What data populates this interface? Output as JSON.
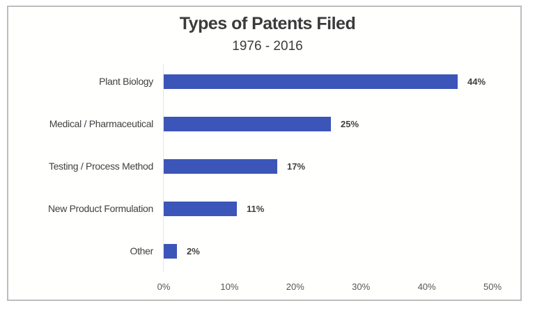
{
  "chart_data": {
    "type": "bar",
    "orientation": "horizontal",
    "title": "Types of Patents Filed",
    "subtitle": "1976 - 2016",
    "categories": [
      "Plant Biology",
      "Medical / Pharmaceutical",
      "Testing / Process Method",
      "New Product Formulation",
      "Other"
    ],
    "values": [
      44,
      25,
      17,
      11,
      2
    ],
    "value_labels": [
      "44%",
      "25%",
      "17%",
      "11%",
      "2%"
    ],
    "xlabel": "",
    "ylabel": "",
    "xlim": [
      0,
      50
    ],
    "x_ticks": [
      "0%",
      "10%",
      "20%",
      "30%",
      "40%",
      "50%"
    ],
    "grid": false,
    "legend": null,
    "bar_color": "#3c55b8"
  },
  "colors": {
    "bar": "#3c55b8",
    "text": "#404040",
    "frame": "#bdbdbd"
  }
}
